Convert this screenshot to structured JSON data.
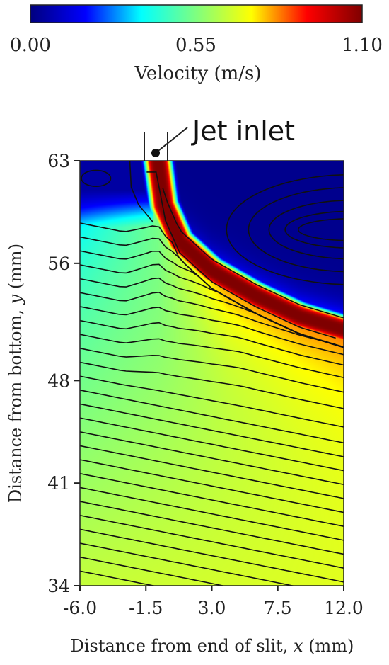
{
  "chart_data": {
    "type": "heatmap",
    "title": "",
    "colorbar": {
      "label": "Velocity (m/s)",
      "min": 0.0,
      "max": 1.1,
      "ticks": [
        "0.00",
        "0.55",
        "1.10"
      ],
      "colormap": [
        "#00007f",
        "#0000ff",
        "#00ffff",
        "#7fff7f",
        "#ffff00",
        "#ff0000",
        "#7f0000"
      ]
    },
    "xlabel": "Distance from end of slit, x (mm)",
    "xlabel_parts": [
      "Distance from end of slit, ",
      "x",
      " (mm)"
    ],
    "ylabel": "Distance from bottom, y (mm)",
    "ylabel_parts": [
      "Distance from bottom, ",
      "y",
      " (mm)"
    ],
    "xlim": [
      -6.0,
      12.0
    ],
    "ylim": [
      34,
      63
    ],
    "xticks": [
      -6.0,
      -1.5,
      3.0,
      7.5,
      12.0
    ],
    "xtick_labels": [
      "-6.0",
      "-1.5",
      "3.0",
      "7.5",
      "12.0"
    ],
    "yticks": [
      34,
      41,
      48,
      56,
      63
    ],
    "ytick_labels": [
      "34",
      "41",
      "48",
      "56",
      "63"
    ],
    "annotation": {
      "text": "Jet inlet",
      "x": -1.0,
      "y": 63,
      "inlet_x_range": [
        -1.5,
        0.2
      ]
    },
    "jet": {
      "peak_velocity": 1.1,
      "centerline": [
        [
          -0.7,
          63
        ],
        [
          -0.3,
          60
        ],
        [
          0.8,
          57.5
        ],
        [
          3.0,
          55.5
        ],
        [
          6.0,
          53.8
        ],
        [
          9.0,
          52.4
        ],
        [
          12.0,
          51.5
        ]
      ],
      "half_width_mm": 0.9
    },
    "background_velocity": {
      "top_right_region": 0.02,
      "top_left_region": 0.05,
      "left_mid": 0.55,
      "center_mid": 0.7,
      "bottom_left": 0.65,
      "bottom_right": 0.68,
      "right_below_jet": 0.85
    },
    "grid": false,
    "legend": "colorbar-top"
  }
}
